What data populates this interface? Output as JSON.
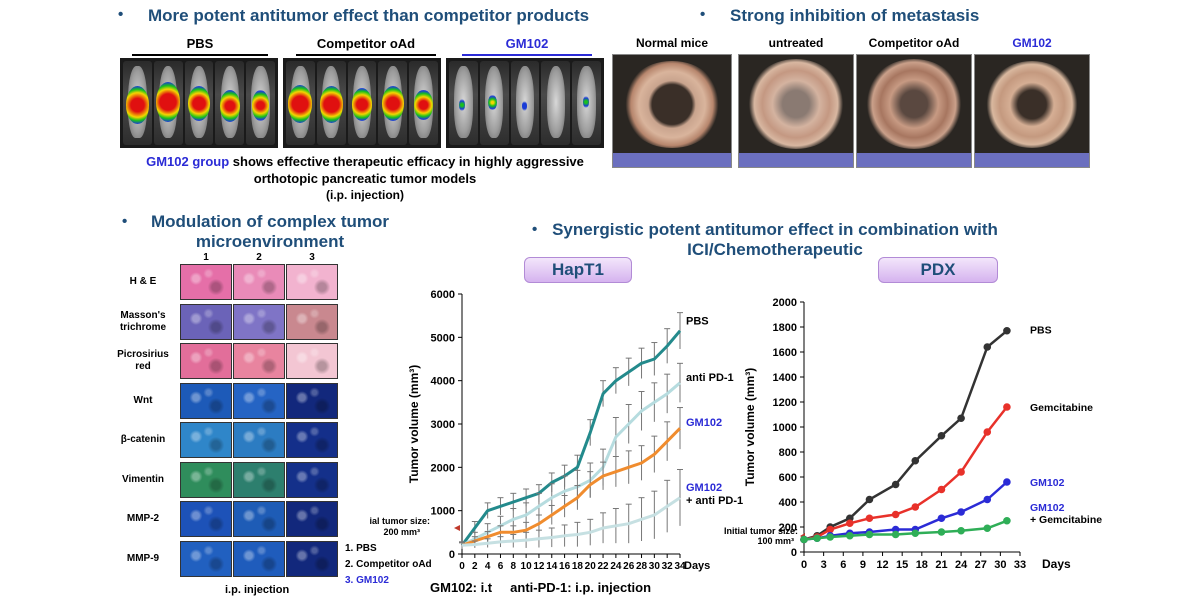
{
  "headings": {
    "potent": "More potent antitumor effect than competitor products",
    "metastasis": "Strong inhibition of metastasis",
    "microenv_line1": "Modulation of complex tumor",
    "microenv_line2": "microenvironment",
    "synergy_line1": "Synergistic potent antitumor effect in combination with",
    "synergy_line2": "ICI/Chemotherapeutic",
    "bullet": "•"
  },
  "imaging": {
    "groups": [
      "PBS",
      "Competitor oAd",
      "GM102"
    ],
    "caption_highlight": "GM102 group",
    "caption_rest": " shows effective therapeutic efficacy in highly aggressive",
    "caption_line2": "orthotopic pancreatic tumor models",
    "caption_line3": "(i.p. injection)"
  },
  "metastasis_photos": {
    "labels": [
      "Normal mice",
      "untreated",
      "Competitor oAd",
      "GM102"
    ]
  },
  "histology": {
    "columns": [
      "1",
      "2",
      "3"
    ],
    "rows": [
      {
        "label": "H & E",
        "colors": [
          "#e56fa8",
          "#e98bb8",
          "#f2b3cf"
        ]
      },
      {
        "label": "Masson's trichrome",
        "colors": [
          "#6b63b8",
          "#7f74c6",
          "#c9888f"
        ]
      },
      {
        "label": "Picrosirius red",
        "colors": [
          "#e26e9a",
          "#e8849f",
          "#f3c6d3"
        ]
      },
      {
        "label": "Wnt",
        "colors": [
          "#1d5ab8",
          "#2564c4",
          "#12287c"
        ]
      },
      {
        "label": "β-catenin",
        "colors": [
          "#2f86c9",
          "#2c7cc2",
          "#142f8a"
        ]
      },
      {
        "label": "Vimentin",
        "colors": [
          "#2f8d5c",
          "#2d7f6e",
          "#14308a"
        ]
      },
      {
        "label": "MMP-2",
        "colors": [
          "#1d52b8",
          "#1e5cb6",
          "#12287c"
        ]
      },
      {
        "label": "MMP-9",
        "colors": [
          "#2160c0",
          "#1f5cbc",
          "#12287c"
        ]
      }
    ],
    "legend": [
      "1. PBS",
      "2. Competitor oAd",
      "3. GM102"
    ],
    "footer": "i.p. injection"
  },
  "hapt1": {
    "pill": "HapT1",
    "ylabel": "Tumor volume (mm³)",
    "xlabel": "Days",
    "initial_line1": "Initial tumor size:",
    "initial_line2": "200 mm³",
    "footer": "GM102: i.t     anti-PD-1: i.p. injection"
  },
  "pdx": {
    "pill": "PDX",
    "ylabel": "Tumor volume (mm³)",
    "xlabel": "Days",
    "initial_line1": "Initial tumor size:",
    "initial_line2": "100 mm³"
  },
  "chart_data": [
    {
      "type": "line",
      "id": "hapt1",
      "xlabel": "Days",
      "ylabel": "Tumor volume (mm³)",
      "ylim": [
        0,
        6000
      ],
      "yticks": [
        0,
        1000,
        2000,
        3000,
        4000,
        5000,
        6000
      ],
      "x": [
        0,
        2,
        4,
        6,
        8,
        10,
        12,
        14,
        16,
        18,
        20,
        22,
        24,
        26,
        28,
        30,
        32,
        34
      ],
      "xtick_labels": [
        "0",
        "2",
        "4",
        "6",
        "8",
        "10",
        "12",
        "14",
        "16",
        "18",
        "20",
        "22",
        "24",
        "26",
        "28",
        "30",
        "32",
        "34"
      ],
      "grid": false,
      "series": [
        {
          "name": "PBS",
          "color": "#238a8c",
          "values": [
            200,
            600,
            1000,
            1100,
            1200,
            1300,
            1400,
            1650,
            1800,
            2000,
            2800,
            3700,
            4000,
            4200,
            4400,
            4500,
            4800,
            5150
          ],
          "errors": [
            80,
            150,
            180,
            200,
            200,
            200,
            200,
            220,
            250,
            280,
            300,
            300,
            300,
            320,
            350,
            380,
            400,
            420
          ]
        },
        {
          "name": "anti PD-1",
          "color": "#b6dcdf",
          "values": [
            200,
            350,
            500,
            650,
            800,
            900,
            1100,
            1300,
            1450,
            1550,
            1700,
            2000,
            2700,
            3000,
            3300,
            3500,
            3700,
            3950
          ],
          "errors": [
            80,
            150,
            200,
            220,
            250,
            280,
            300,
            320,
            350,
            380,
            400,
            420,
            450,
            450,
            450,
            450,
            450,
            450
          ]
        },
        {
          "name": "GM102",
          "color": "#f08c2e",
          "values": [
            200,
            300,
            400,
            500,
            500,
            550,
            700,
            900,
            1100,
            1300,
            1600,
            1800,
            1900,
            2000,
            2100,
            2300,
            2600,
            2900
          ],
          "errors": [
            60,
            100,
            120,
            150,
            150,
            180,
            200,
            220,
            250,
            280,
            300,
            320,
            350,
            380,
            400,
            420,
            450,
            480
          ]
        },
        {
          "name": "GM102 + anti PD-1",
          "color": "#c6e0e2",
          "values": [
            200,
            220,
            250,
            280,
            300,
            320,
            350,
            380,
            420,
            450,
            500,
            600,
            650,
            700,
            800,
            900,
            1100,
            1300
          ],
          "errors": [
            60,
            80,
            100,
            120,
            150,
            180,
            200,
            220,
            250,
            280,
            300,
            350,
            400,
            450,
            500,
            550,
            600,
            650
          ]
        }
      ],
      "series_labels": [
        {
          "lines": [
            "PBS"
          ],
          "color": "#000000"
        },
        {
          "lines": [
            "anti PD-1"
          ],
          "color": "#000000"
        },
        {
          "lines": [
            "GM102"
          ],
          "color": "#2b2bd6"
        },
        {
          "lines": [
            "GM102",
            "+ anti PD-1"
          ],
          "colors": [
            "#2b2bd6",
            "#000000"
          ]
        }
      ]
    },
    {
      "type": "line",
      "id": "pdx",
      "xlabel": "Days",
      "ylabel": "Tumor volume (mm³)",
      "ylim": [
        0,
        2000
      ],
      "yticks": [
        0,
        200,
        400,
        600,
        800,
        1000,
        1200,
        1400,
        1600,
        1800,
        2000
      ],
      "xlim": [
        0,
        33
      ],
      "xticks": [
        0,
        3,
        6,
        9,
        12,
        15,
        18,
        21,
        24,
        27,
        30,
        33
      ],
      "grid": false,
      "series": [
        {
          "name": "PBS",
          "color": "#333333",
          "x": [
            0,
            2,
            4,
            7,
            10,
            14,
            17,
            21,
            24,
            28,
            31
          ],
          "values": [
            100,
            130,
            200,
            270,
            420,
            540,
            730,
            930,
            1070,
            1640,
            1770
          ]
        },
        {
          "name": "Gemcitabine",
          "color": "#e8312a",
          "x": [
            0,
            2,
            4,
            7,
            10,
            14,
            17,
            21,
            24,
            28,
            31
          ],
          "values": [
            100,
            120,
            180,
            230,
            270,
            300,
            360,
            500,
            640,
            960,
            1160
          ]
        },
        {
          "name": "GM102",
          "color": "#2b2bd6",
          "x": [
            0,
            2,
            4,
            7,
            10,
            14,
            17,
            21,
            24,
            28,
            31
          ],
          "values": [
            100,
            110,
            130,
            150,
            160,
            180,
            180,
            270,
            320,
            420,
            560
          ]
        },
        {
          "name": "GM102 + Gemcitabine",
          "color": "#2fae57",
          "x": [
            0,
            2,
            4,
            7,
            10,
            14,
            17,
            21,
            24,
            28,
            31
          ],
          "values": [
            100,
            110,
            120,
            130,
            140,
            140,
            150,
            160,
            170,
            190,
            250
          ]
        }
      ],
      "series_labels": [
        {
          "lines": [
            "PBS"
          ],
          "color": "#000000"
        },
        {
          "lines": [
            "Gemcitabine"
          ],
          "color": "#000000"
        },
        {
          "lines": [
            "GM102"
          ],
          "color": "#2b2bd6"
        },
        {
          "lines": [
            "GM102",
            "+ Gemcitabine"
          ],
          "colors": [
            "#2b2bd6",
            "#000000"
          ]
        }
      ]
    }
  ]
}
